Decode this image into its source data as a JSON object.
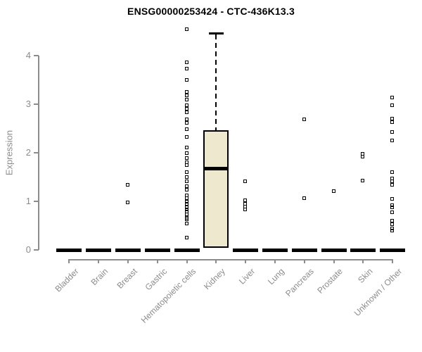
{
  "chart_data": {
    "type": "boxplot",
    "title": "ENSG00000253424 - CTC-436K13.3",
    "ylabel": "Expression",
    "xlabel": "",
    "ylim": [
      0,
      4.6
    ],
    "yticks": [
      0,
      1,
      2,
      3,
      4
    ],
    "grid": false,
    "legend": null,
    "categories": [
      "Bladder",
      "Brain",
      "Breast",
      "Gastric",
      "Hematopoietic cells",
      "Kidney",
      "Liver",
      "Lung",
      "Pancreas",
      "Prostate",
      "Skin",
      "Unknown / Other"
    ],
    "colors": {
      "box_fill": "#EDE8CE",
      "box_border": "#000000",
      "points": "#000000",
      "axis": "#8C8C8C",
      "title": "#000000"
    },
    "series": [
      {
        "category": "Bladder",
        "median": 0,
        "points": []
      },
      {
        "category": "Brain",
        "median": 0,
        "points": []
      },
      {
        "category": "Breast",
        "median": 0,
        "points": [
          1.33,
          0.97
        ]
      },
      {
        "category": "Gastric",
        "median": 0,
        "points": []
      },
      {
        "category": "Hematopoietic cells",
        "median": 0,
        "points": [
          4.53,
          3.85,
          3.73,
          3.49,
          3.25,
          3.18,
          3.08,
          2.97,
          2.9,
          2.83,
          2.68,
          2.61,
          2.48,
          2.32,
          2.1,
          1.99,
          1.88,
          1.8,
          1.74,
          1.59,
          1.49,
          1.41,
          1.3,
          1.23,
          1.12,
          1.06,
          0.99,
          0.94,
          0.87,
          0.83,
          0.78,
          0.72,
          0.65,
          0.62,
          0.54,
          0.25
        ]
      },
      {
        "category": "Kidney",
        "box": {
          "whisker_low": 0,
          "q1": 0.04,
          "median": 1.68,
          "q3": 2.46,
          "whisker_high": 4.46
        },
        "points": []
      },
      {
        "category": "Liver",
        "median": 0,
        "points": [
          1.4,
          1.01,
          0.94,
          0.88,
          0.83
        ]
      },
      {
        "category": "Lung",
        "median": 0,
        "points": []
      },
      {
        "category": "Pancreas",
        "median": 0,
        "points": [
          2.68,
          1.06
        ]
      },
      {
        "category": "Prostate",
        "median": 0,
        "points": [
          1.2
        ]
      },
      {
        "category": "Skin",
        "median": 0,
        "points": [
          1.97,
          1.92,
          1.42
        ]
      },
      {
        "category": "Unknown / Other",
        "median": 0,
        "points": [
          3.13,
          2.97,
          2.69,
          2.63,
          2.42,
          2.25,
          1.59,
          1.47,
          1.4,
          1.33,
          1.04,
          0.92,
          0.87,
          0.77,
          0.6,
          0.52,
          0.43,
          0.39
        ]
      }
    ]
  }
}
